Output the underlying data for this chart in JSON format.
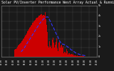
{
  "title": "Solar PV/Inverter Performance West Array Actual & Running Average Power Output",
  "title2": "West Array",
  "bg_color": "#1a1a1a",
  "plot_bg_color": "#1a1a1a",
  "bar_color": "#cc0000",
  "line_color": "#3333ff",
  "grid_color": "#888888",
  "n_points": 144,
  "ylabel_right_labels": [
    "5k",
    "4k",
    "3k",
    "2k",
    "1k",
    "0"
  ],
  "title_fontsize": 3.5,
  "tick_fontsize": 2.5,
  "figsize": [
    1.6,
    1.0
  ],
  "dpi": 100
}
